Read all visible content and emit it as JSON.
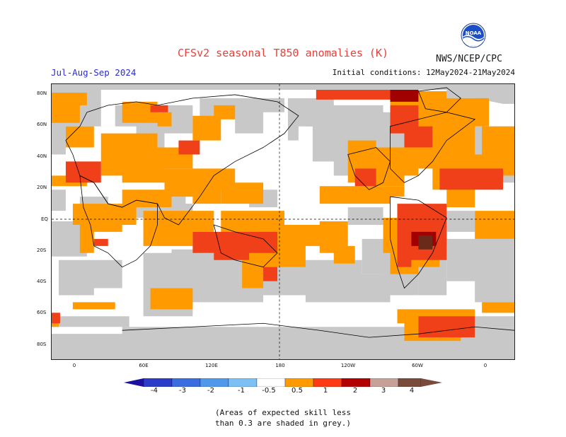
{
  "title": "CFSv2 seasonal T850 anomalies (K)",
  "org": "NWS/NCEP/CPC",
  "logo_text": "NOAA",
  "season": "Jul-Aug-Sep 2024",
  "initial_conditions": "Initial conditions: 12May2024-21May2024",
  "lat_labels": [
    "80N",
    "60N",
    "40N",
    "20N",
    "EQ",
    "20S",
    "40S",
    "60S",
    "80S"
  ],
  "lon_labels": [
    "0",
    "60E",
    "120E",
    "180",
    "120W",
    "60W",
    "0"
  ],
  "colorbar": {
    "labels": [
      "-4",
      "-3",
      "-2",
      "-1",
      "-0.5",
      "0.5",
      "1",
      "2",
      "3",
      "4"
    ],
    "colors": [
      "#1c10a0",
      "#2a3cc8",
      "#3a6ee0",
      "#4f98ec",
      "#7cc0f4",
      "#ffffff",
      "#ff9b00",
      "#ff3a12",
      "#b30000",
      "#c8a09a",
      "#7a4a3a"
    ]
  },
  "note_line1": "(Areas of expected skill less",
  "note_line2": "than 0.3 are shaded in grey.)",
  "colors": {
    "grey": "#c8c8c8",
    "orange": "#ff9b00",
    "red": "#f0401a",
    "darkred": "#a00000",
    "brown": "#6a2a1a"
  }
}
